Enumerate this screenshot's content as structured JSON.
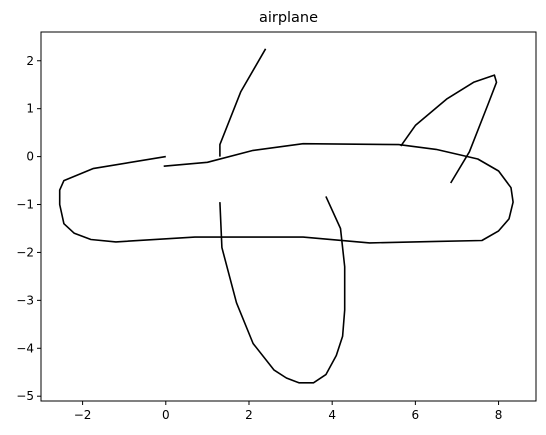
{
  "chart_data": {
    "type": "line",
    "title": "airplane",
    "xlabel": "",
    "ylabel": "",
    "xlim": [
      -3.0,
      8.9
    ],
    "ylim": [
      -5.1,
      2.6
    ],
    "grid": false,
    "legend": "none",
    "line_color": "#000000",
    "x_ticks": [
      -2,
      0,
      2,
      4,
      6,
      8
    ],
    "y_ticks": [
      -5,
      -4,
      -3,
      -2,
      -1,
      0,
      1,
      2
    ],
    "series": [
      {
        "x": [
          -0.05,
          1.0,
          2.1,
          3.3,
          5.6,
          6.5,
          7.5,
          8.0,
          8.3,
          8.35,
          8.25,
          8.0,
          7.6,
          6.5,
          4.9,
          3.3,
          0.7,
          -1.2,
          -1.8,
          -2.2,
          -2.45,
          -2.55,
          -2.55,
          -2.45,
          -1.75,
          0.0
        ],
        "y": [
          -0.2,
          -0.12,
          0.13,
          0.27,
          0.25,
          0.15,
          -0.05,
          -0.3,
          -0.65,
          -0.95,
          -1.3,
          -1.55,
          -1.75,
          -1.77,
          -1.8,
          -1.68,
          -1.68,
          -1.78,
          -1.73,
          -1.6,
          -1.4,
          -1.0,
          -0.7,
          -0.5,
          -0.25,
          0.0
        ]
      },
      {
        "x": [
          1.3,
          1.3,
          1.8,
          2.4
        ],
        "y": [
          0.0,
          0.25,
          1.35,
          2.25
        ]
      },
      {
        "x": [
          1.3,
          1.35,
          1.7,
          2.1,
          2.6,
          2.9,
          3.2,
          3.55,
          3.85,
          4.1,
          4.25,
          4.3,
          4.3,
          4.2,
          3.85
        ],
        "y": [
          -0.95,
          -1.9,
          -3.05,
          -3.9,
          -4.45,
          -4.62,
          -4.72,
          -4.72,
          -4.55,
          -4.15,
          -3.75,
          -3.2,
          -2.3,
          -1.5,
          -0.83
        ]
      },
      {
        "x": [
          5.65,
          6.0,
          6.75,
          7.4,
          7.9,
          7.95,
          7.75,
          7.3,
          6.85
        ],
        "y": [
          0.22,
          0.65,
          1.2,
          1.55,
          1.7,
          1.55,
          1.1,
          0.1,
          -0.55
        ]
      }
    ]
  }
}
